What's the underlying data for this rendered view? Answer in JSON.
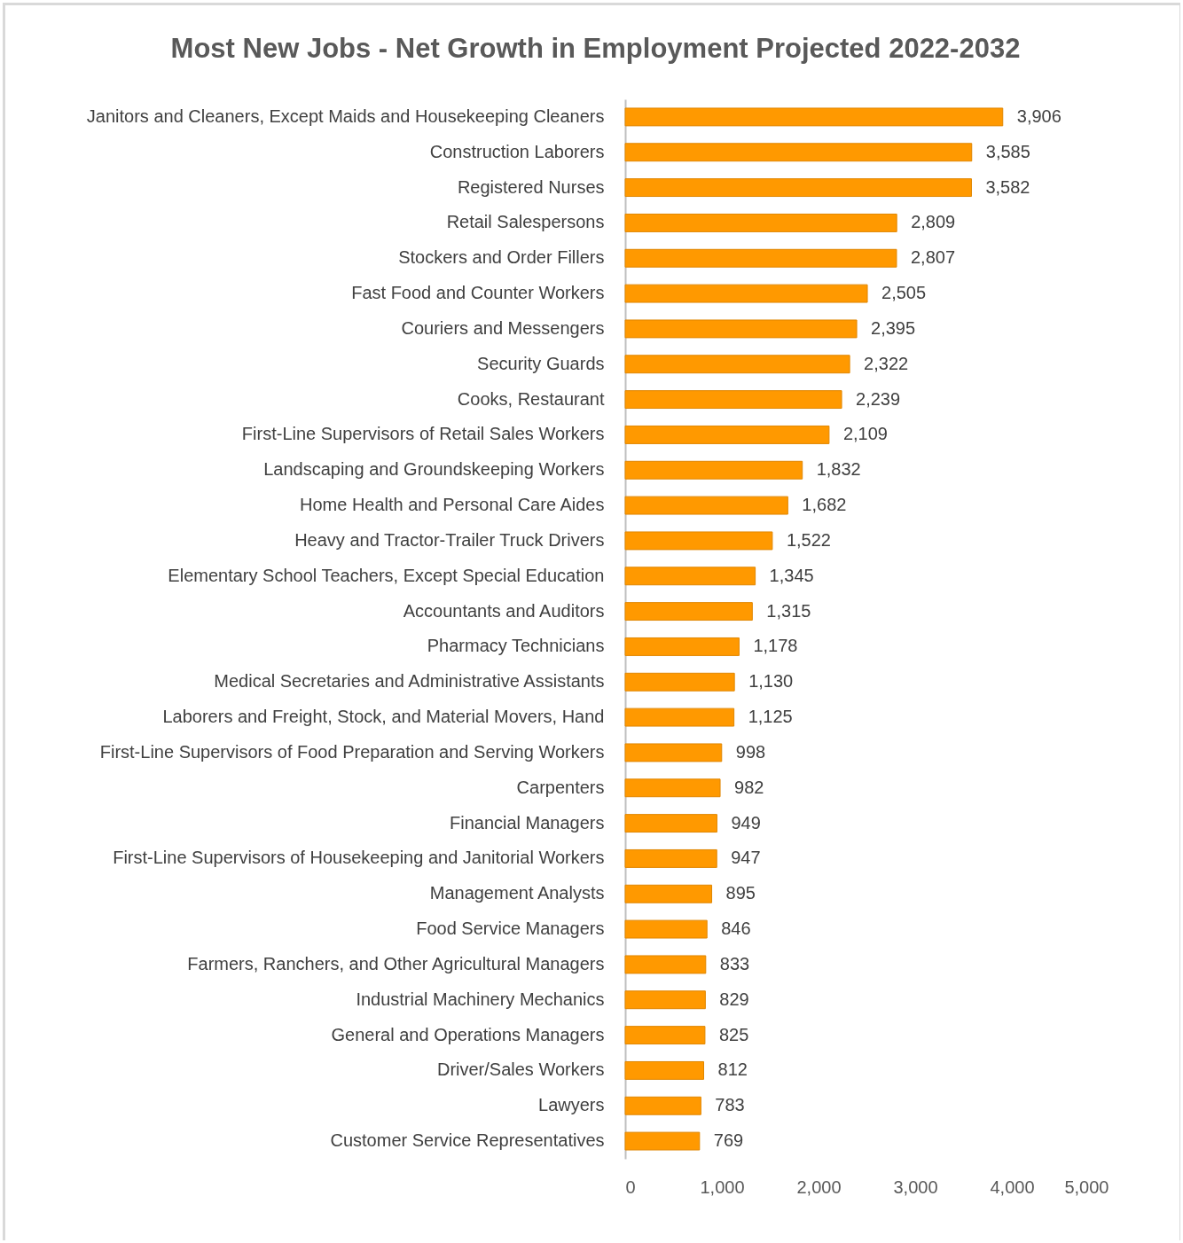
{
  "chart_data": {
    "type": "bar",
    "orientation": "horizontal",
    "title": "Most New Jobs - Net Growth in Employment Projected 2022-2032",
    "categories": [
      "Janitors and Cleaners, Except Maids and Housekeeping Cleaners",
      "Construction Laborers",
      "Registered Nurses",
      "Retail Salespersons",
      "Stockers and Order Fillers",
      "Fast Food and Counter Workers",
      "Couriers and Messengers",
      "Security Guards",
      "Cooks, Restaurant",
      "First-Line Supervisors of Retail Sales Workers",
      "Landscaping and Groundskeeping Workers",
      "Home Health and Personal Care Aides",
      "Heavy and Tractor-Trailer Truck Drivers",
      "Elementary School Teachers, Except Special Education",
      "Accountants and Auditors",
      "Pharmacy Technicians",
      "Medical Secretaries and Administrative Assistants",
      "Laborers and Freight, Stock, and Material Movers, Hand",
      "First-Line Supervisors of Food Preparation and Serving Workers",
      "Carpenters",
      "Financial Managers",
      "First-Line Supervisors of Housekeeping and Janitorial Workers",
      "Management Analysts",
      "Food Service Managers",
      "Farmers, Ranchers, and Other Agricultural Managers",
      "Industrial Machinery Mechanics",
      "General and Operations Managers",
      "Driver/Sales Workers",
      "Lawyers",
      "Customer Service Representatives"
    ],
    "values": [
      3906,
      3585,
      3582,
      2809,
      2807,
      2505,
      2395,
      2322,
      2239,
      2109,
      1832,
      1682,
      1522,
      1345,
      1315,
      1178,
      1130,
      1125,
      998,
      982,
      949,
      947,
      895,
      846,
      833,
      829,
      825,
      812,
      783,
      769
    ],
    "color": "#ff9900",
    "xlim": [
      0,
      5000
    ],
    "xticks": [
      0,
      {
        "value": 1000,
        "label": "1,000"
      },
      {
        "value": 2000,
        "label": "2,000"
      },
      {
        "value": 3000,
        "label": "3,000"
      },
      {
        "value": 4000,
        "label": "4,000"
      },
      {
        "value": 5000,
        "label": "5,000"
      }
    ],
    "value_labels": [
      "3,906",
      "3,585",
      "3,582",
      "2,809",
      "2,807",
      "2,505",
      "2,395",
      "2,322",
      "2,239",
      "2,109",
      "1,832",
      "1,682",
      "1,522",
      "1,345",
      "1,315",
      "1,178",
      "1,130",
      "1,125",
      "998",
      "982",
      "949",
      "947",
      "895",
      "846",
      "833",
      "829",
      "825",
      "812",
      "783",
      "769"
    ],
    "grid": false
  }
}
